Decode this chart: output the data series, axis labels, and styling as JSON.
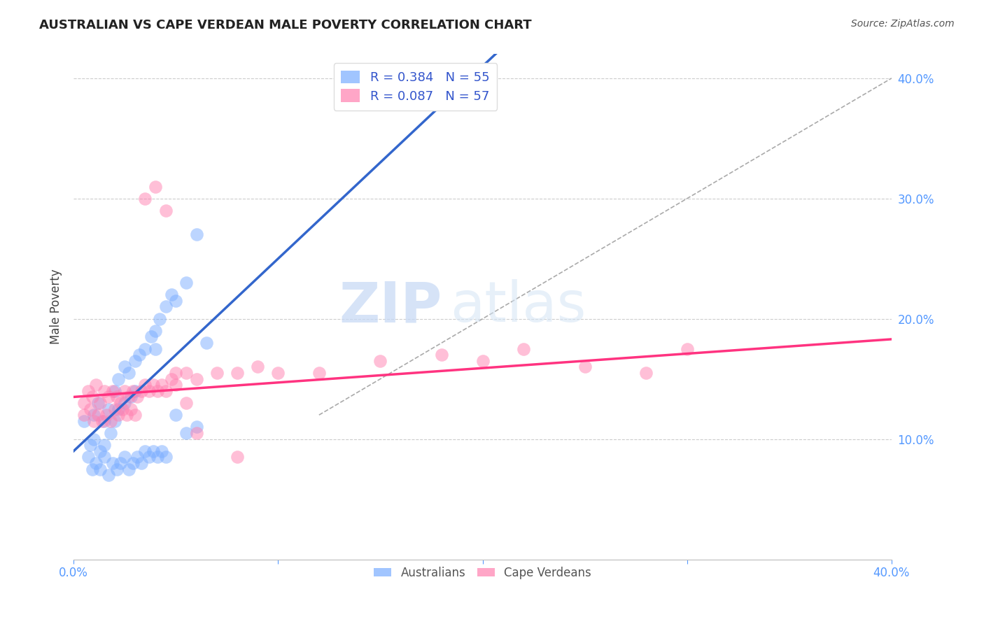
{
  "title": "AUSTRALIAN VS CAPE VERDEAN MALE POVERTY CORRELATION CHART",
  "source": "Source: ZipAtlas.com",
  "tick_color": "#5599ff",
  "ylabel": "Male Poverty",
  "xlim": [
    0.0,
    0.4
  ],
  "ylim": [
    0.0,
    0.42
  ],
  "x_ticks": [
    0.0,
    0.1,
    0.2,
    0.3,
    0.4
  ],
  "x_tick_labels": [
    "0.0%",
    "",
    "",
    "",
    "40.0%"
  ],
  "y_ticks": [
    0.1,
    0.2,
    0.3,
    0.4
  ],
  "y_tick_labels_right": [
    "10.0%",
    "20.0%",
    "30.0%",
    "40.0%"
  ],
  "legend_r1": "R = 0.384",
  "legend_n1": "N = 55",
  "legend_r2": "R = 0.087",
  "legend_n2": "N = 57",
  "color_blue": "#7aadff",
  "color_pink": "#ff80b0",
  "color_blue_line": "#3366cc",
  "color_pink_line": "#ff3380",
  "color_diag": "#aaaaaa",
  "watermark_zip": "ZIP",
  "watermark_atlas": "atlas",
  "background": "#ffffff",
  "grid_color": "#cccccc",
  "aus_x": [
    0.005,
    0.008,
    0.01,
    0.01,
    0.012,
    0.013,
    0.015,
    0.015,
    0.017,
    0.018,
    0.02,
    0.02,
    0.022,
    0.022,
    0.025,
    0.025,
    0.027,
    0.028,
    0.03,
    0.03,
    0.032,
    0.035,
    0.038,
    0.04,
    0.04,
    0.042,
    0.045,
    0.048,
    0.05,
    0.055,
    0.06,
    0.065,
    0.007,
    0.009,
    0.011,
    0.013,
    0.015,
    0.017,
    0.019,
    0.021,
    0.023,
    0.025,
    0.027,
    0.029,
    0.031,
    0.033,
    0.035,
    0.037,
    0.039,
    0.041,
    0.043,
    0.045,
    0.05,
    0.055,
    0.06
  ],
  "aus_y": [
    0.115,
    0.095,
    0.12,
    0.1,
    0.13,
    0.09,
    0.115,
    0.095,
    0.125,
    0.105,
    0.14,
    0.115,
    0.15,
    0.125,
    0.16,
    0.13,
    0.155,
    0.135,
    0.165,
    0.14,
    0.17,
    0.175,
    0.185,
    0.19,
    0.175,
    0.2,
    0.21,
    0.22,
    0.215,
    0.23,
    0.27,
    0.18,
    0.085,
    0.075,
    0.08,
    0.075,
    0.085,
    0.07,
    0.08,
    0.075,
    0.08,
    0.085,
    0.075,
    0.08,
    0.085,
    0.08,
    0.09,
    0.085,
    0.09,
    0.085,
    0.09,
    0.085,
    0.12,
    0.105,
    0.11
  ],
  "cv_x": [
    0.005,
    0.007,
    0.009,
    0.011,
    0.013,
    0.015,
    0.017,
    0.019,
    0.021,
    0.023,
    0.025,
    0.027,
    0.029,
    0.031,
    0.033,
    0.035,
    0.037,
    0.039,
    0.041,
    0.043,
    0.045,
    0.048,
    0.05,
    0.055,
    0.06,
    0.07,
    0.08,
    0.09,
    0.1,
    0.12,
    0.15,
    0.18,
    0.2,
    0.22,
    0.25,
    0.28,
    0.3,
    0.005,
    0.008,
    0.01,
    0.012,
    0.014,
    0.016,
    0.018,
    0.02,
    0.022,
    0.024,
    0.026,
    0.028,
    0.03,
    0.035,
    0.04,
    0.045,
    0.05,
    0.055,
    0.06,
    0.08
  ],
  "cv_y": [
    0.13,
    0.14,
    0.135,
    0.145,
    0.13,
    0.14,
    0.135,
    0.14,
    0.135,
    0.13,
    0.14,
    0.135,
    0.14,
    0.135,
    0.14,
    0.145,
    0.14,
    0.145,
    0.14,
    0.145,
    0.14,
    0.15,
    0.145,
    0.155,
    0.15,
    0.155,
    0.155,
    0.16,
    0.155,
    0.155,
    0.165,
    0.17,
    0.165,
    0.175,
    0.16,
    0.155,
    0.175,
    0.12,
    0.125,
    0.115,
    0.12,
    0.115,
    0.12,
    0.115,
    0.125,
    0.12,
    0.125,
    0.12,
    0.125,
    0.12,
    0.3,
    0.31,
    0.29,
    0.155,
    0.13,
    0.105,
    0.085
  ],
  "aus_slope": 1.6,
  "aus_intercept": 0.09,
  "cv_slope": 0.12,
  "cv_intercept": 0.135
}
